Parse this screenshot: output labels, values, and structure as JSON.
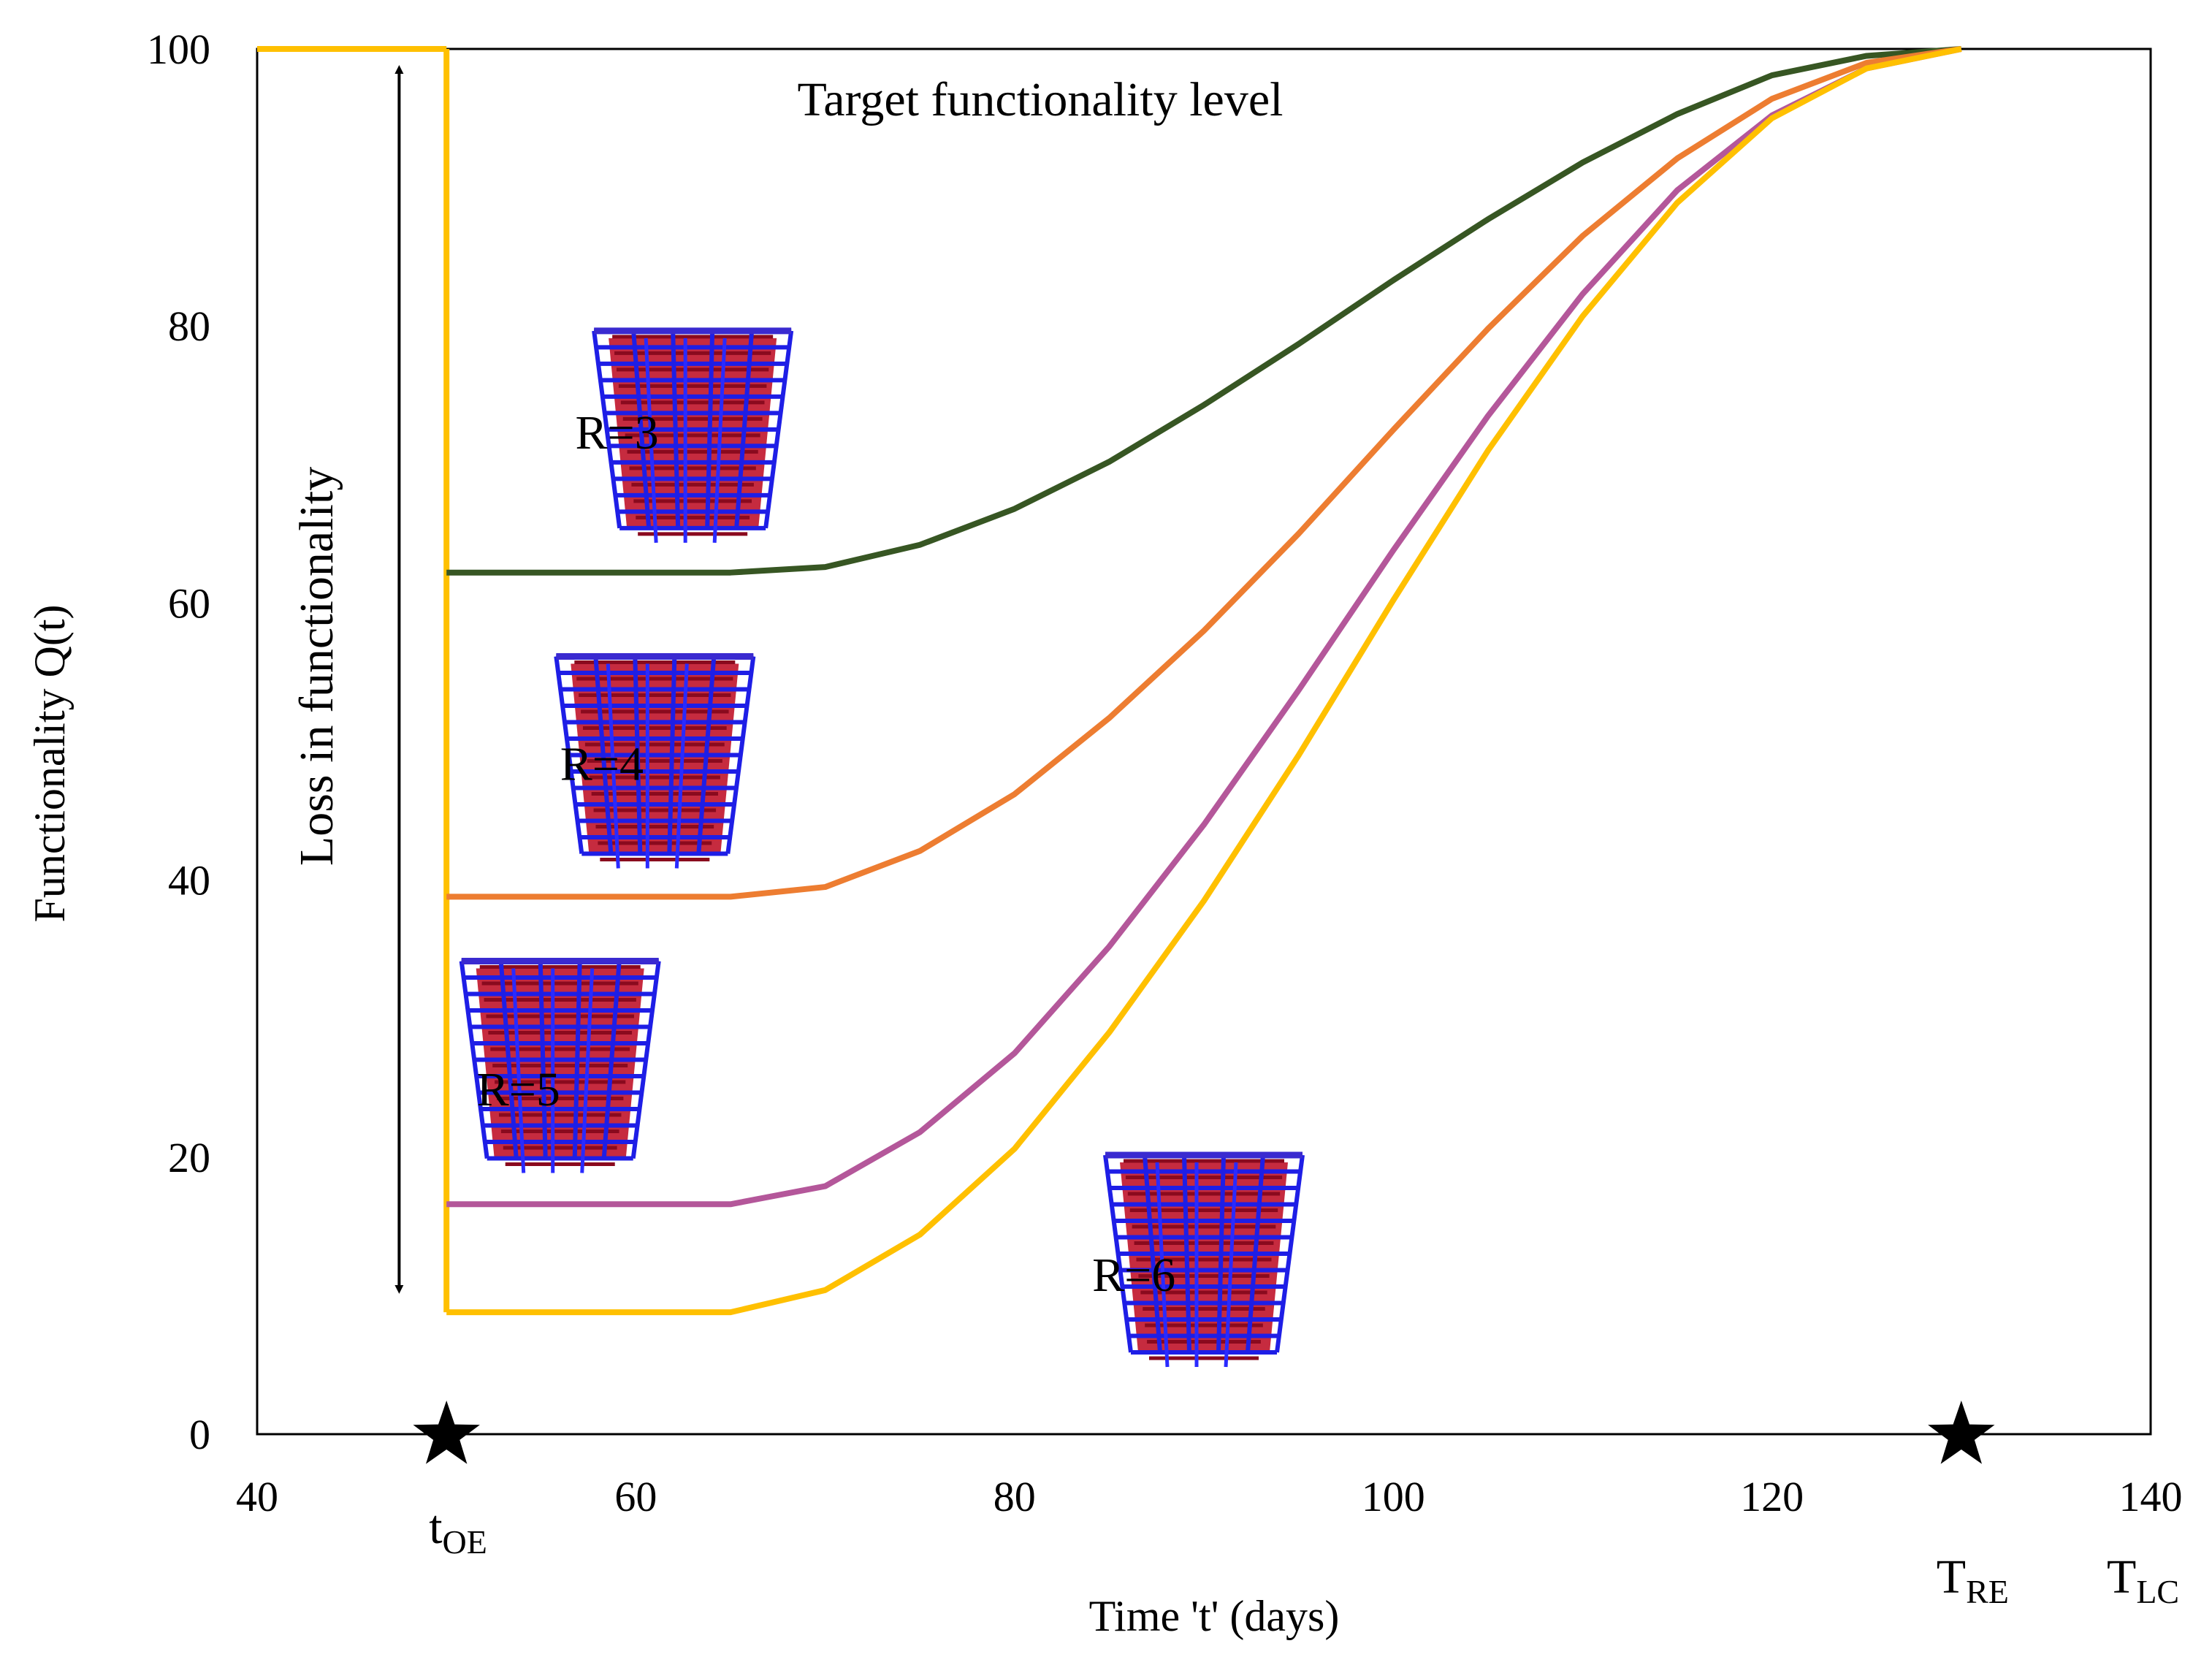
{
  "chart_data": {
    "type": "line",
    "title": "",
    "xlabel": "Time 't' (days)",
    "ylabel": "Functionality Q(t)",
    "xlim": [
      40,
      140
    ],
    "ylim": [
      0,
      100
    ],
    "xticks": [
      40,
      60,
      80,
      100,
      120,
      140
    ],
    "yticks": [
      0,
      20,
      40,
      60,
      80,
      100
    ],
    "grid": false,
    "legend": "none",
    "x": [
      50,
      55,
      60,
      65,
      70,
      75,
      80,
      85,
      90,
      95,
      100,
      105,
      110,
      115,
      120,
      125,
      130
    ],
    "series": [
      {
        "name": "R=3",
        "color": "#375623",
        "values": [
          62.2,
          62.2,
          62.2,
          62.2,
          62.6,
          64.2,
          66.8,
          70.2,
          74.3,
          78.7,
          83.3,
          87.7,
          91.8,
          95.3,
          98.1,
          99.5,
          100
        ]
      },
      {
        "name": "R=4",
        "color": "#ED7D31",
        "values": [
          38.8,
          38.8,
          38.8,
          38.8,
          39.5,
          42.1,
          46.2,
          51.7,
          58.0,
          65.0,
          72.5,
          79.8,
          86.5,
          92.1,
          96.4,
          99.0,
          100
        ]
      },
      {
        "name": "R=5",
        "color": "#B4579A",
        "values": [
          16.6,
          16.6,
          16.6,
          16.6,
          17.9,
          21.8,
          27.5,
          35.2,
          44.0,
          53.7,
          63.8,
          73.5,
          82.3,
          89.8,
          95.2,
          98.6,
          100
        ]
      },
      {
        "name": "R=6",
        "color": "#FFC000",
        "values": [
          8.8,
          8.8,
          8.8,
          8.8,
          10.4,
          14.4,
          20.6,
          29.0,
          38.5,
          49.0,
          60.2,
          71.0,
          80.7,
          88.9,
          95.0,
          98.6,
          100
        ]
      }
    ],
    "pre_event": {
      "x": [
        40,
        50
      ],
      "value": 100,
      "color": "#FFC000"
    },
    "event_drop": {
      "x": 50,
      "from": 100,
      "to": 8.8,
      "color": "#FFC000"
    },
    "markers": [
      {
        "x": 50,
        "label": "t",
        "sub": "OE"
      },
      {
        "x": 130,
        "label": "T",
        "sub": "RE"
      },
      {
        "x": 140,
        "label": "T",
        "sub": "LC"
      }
    ],
    "annotations": {
      "target": "Target functionality level",
      "loss": "Loss in functionality",
      "loss_arrow": {
        "x": 47.5,
        "from": 100,
        "to": 9.5
      },
      "series_labels": [
        {
          "text": "R=3",
          "x": 56.8,
          "y": 72.3
        },
        {
          "text": "R=4",
          "x": 56.0,
          "y": 48.4
        },
        {
          "text": "R=5",
          "x": 51.6,
          "y": 24.9
        },
        {
          "text": "R=6",
          "x": 84.1,
          "y": 11.5
        }
      ],
      "buildings": [
        {
          "name": "building-r3",
          "x": 63.0,
          "y": 72.0
        },
        {
          "name": "building-r4",
          "x": 61.0,
          "y": 48.5
        },
        {
          "name": "building-r5",
          "x": 56.0,
          "y": 26.5
        },
        {
          "name": "building-r6",
          "x": 90.0,
          "y": 12.5
        }
      ]
    }
  }
}
